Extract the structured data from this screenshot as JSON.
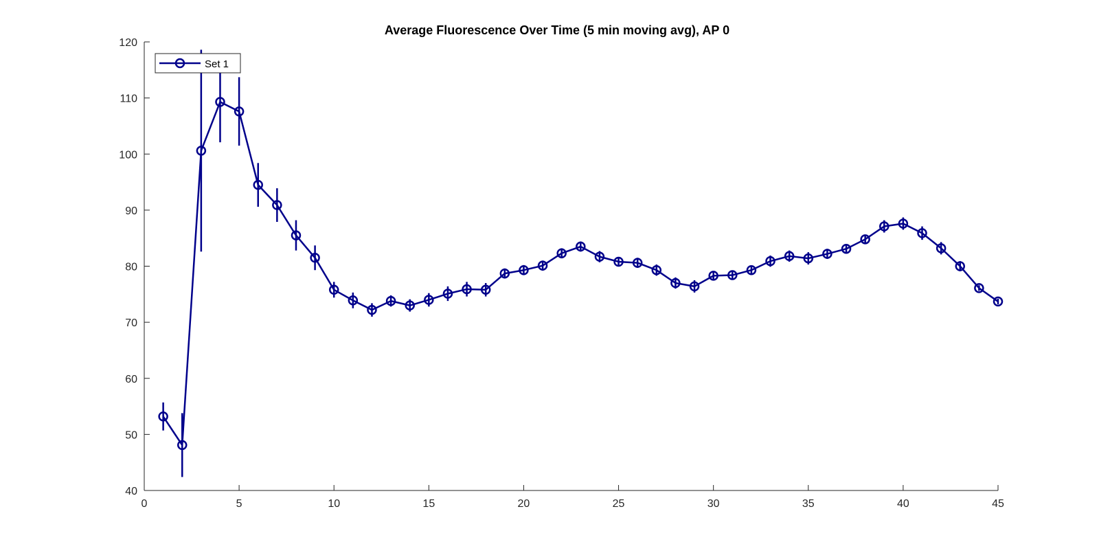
{
  "chart_data": {
    "type": "line",
    "title": "Average Fluorescence Over Time (5 min moving avg), AP 0",
    "xlabel": "",
    "ylabel": "",
    "xlim": [
      0,
      45
    ],
    "ylim": [
      40,
      120
    ],
    "xticks": [
      0,
      5,
      10,
      15,
      20,
      25,
      30,
      35,
      40,
      45
    ],
    "yticks": [
      40,
      50,
      60,
      70,
      80,
      90,
      100,
      110,
      120
    ],
    "grid": false,
    "legend_position": "top-left",
    "series": [
      {
        "name": "Set 1",
        "color": "#00008B",
        "marker": "circle",
        "x": [
          1,
          2,
          3,
          4,
          5,
          6,
          7,
          8,
          9,
          10,
          11,
          12,
          13,
          14,
          15,
          16,
          17,
          18,
          19,
          20,
          21,
          22,
          23,
          24,
          25,
          26,
          27,
          28,
          29,
          30,
          31,
          32,
          33,
          34,
          35,
          36,
          37,
          38,
          39,
          40,
          41,
          42,
          43,
          44,
          45
        ],
        "y": [
          53.2,
          48.1,
          100.6,
          109.3,
          107.6,
          94.5,
          90.9,
          85.5,
          81.5,
          75.8,
          73.9,
          72.2,
          73.8,
          73.0,
          74.0,
          75.1,
          75.9,
          75.8,
          78.7,
          79.3,
          80.1,
          82.3,
          83.5,
          81.7,
          80.8,
          80.6,
          79.3,
          77.0,
          76.4,
          78.3,
          78.4,
          79.3,
          80.9,
          81.8,
          81.4,
          82.2,
          83.1,
          84.8,
          87.1,
          87.6,
          85.9,
          83.2,
          80.0,
          76.1,
          73.7
        ],
        "error": [
          2.5,
          5.7,
          18.0,
          7.2,
          6.1,
          3.9,
          3.0,
          2.7,
          2.2,
          1.4,
          1.4,
          1.2,
          1.0,
          1.1,
          1.2,
          1.3,
          1.3,
          1.2,
          0.9,
          0.9,
          0.9,
          0.9,
          0.9,
          1.0,
          0.8,
          0.9,
          1.0,
          1.0,
          1.1,
          0.7,
          0.8,
          0.8,
          1.0,
          1.0,
          1.1,
          0.9,
          0.8,
          0.8,
          1.1,
          1.1,
          1.2,
          1.1,
          0.9,
          0.5,
          0.5
        ]
      }
    ]
  }
}
